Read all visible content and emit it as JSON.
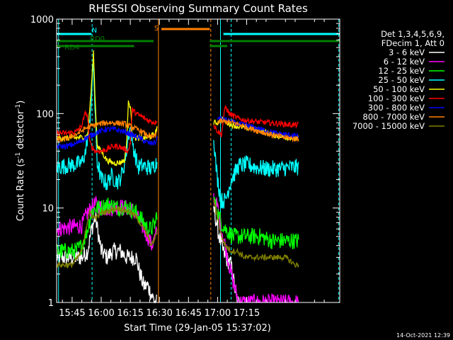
{
  "chart_data": {
    "type": "line",
    "title": "RHESSI Observing Summary Count Rates",
    "xlabel": "Start Time (29-Jan-05 15:37:02)",
    "ylabel": "Count Rate (s⁻¹ detector⁻¹)",
    "ylabel_parts": [
      "Count Rate (s",
      "-1",
      " detector",
      "-1",
      ")"
    ],
    "yscale": "log",
    "ylim": [
      1,
      1000
    ],
    "xlim_minutes": [
      37,
      183
    ],
    "x_ticks": [
      {
        "m": 45,
        "label": "15:45"
      },
      {
        "m": 60,
        "label": "16:00"
      },
      {
        "m": 75,
        "label": "16:15"
      },
      {
        "m": 90,
        "label": "16:30"
      },
      {
        "m": 105,
        "label": "16:45"
      },
      {
        "m": 120,
        "label": "17:00"
      },
      {
        "m": 135,
        "label": "17:15"
      }
    ],
    "y_ticks": [
      {
        "v": 1,
        "label": "1"
      },
      {
        "v": 10,
        "label": "10"
      },
      {
        "v": 100,
        "label": "100"
      },
      {
        "v": 1000,
        "label": "1000"
      }
    ],
    "legend_header": [
      "Det 1,3,4,5,6,9,",
      "FDecim 1, Att 0"
    ],
    "legend_position": "right",
    "timestamp": "14-Oct-2021 12:39",
    "series": [
      {
        "name": "3 - 6 keV",
        "color": "#ffffff",
        "gap": 3,
        "x": [
          37,
          50,
          53,
          55,
          57,
          60,
          63,
          66,
          70,
          73,
          76,
          78,
          80,
          82,
          84,
          86,
          88,
          89,
          117,
          118,
          120,
          122,
          124,
          127,
          130,
          132
        ],
        "y": [
          3,
          3,
          3.5,
          6,
          8,
          3.5,
          3,
          3.5,
          3.5,
          3,
          3,
          3,
          2,
          1.5,
          1.5,
          1.2,
          1,
          1,
          20,
          10,
          6,
          4,
          3,
          2.5,
          1,
          1
        ]
      },
      {
        "name": "6 - 12 keV",
        "color": "#ff00ff",
        "gap": 3,
        "x": [
          37,
          50,
          53,
          55,
          57,
          60,
          63,
          66,
          69,
          72,
          74,
          76,
          78,
          80,
          82,
          84,
          86,
          88,
          89,
          117,
          118,
          120,
          122,
          124,
          127,
          129,
          131,
          133,
          135,
          138,
          142,
          148,
          152,
          158,
          162
        ],
        "y": [
          6,
          6.5,
          9,
          10,
          11,
          10,
          10,
          10,
          10.5,
          10,
          10,
          9.5,
          8.5,
          7,
          6,
          5,
          4,
          5,
          6,
          20,
          13,
          10,
          6,
          4,
          2,
          1.4,
          1,
          1,
          1,
          1,
          1,
          1,
          1,
          1,
          1
        ]
      },
      {
        "name": "12 - 25 keV",
        "color": "#00ff00",
        "gap": 3,
        "x": [
          37,
          47,
          50,
          53,
          55,
          57,
          60,
          63,
          66,
          69,
          72,
          74,
          76,
          78,
          80,
          82,
          84,
          86,
          88,
          89,
          117,
          118,
          120,
          122,
          124,
          128,
          133,
          138,
          142,
          148,
          152,
          158,
          162
        ],
        "y": [
          3.5,
          3.5,
          4,
          6,
          9,
          10,
          10,
          11,
          10.5,
          10,
          10.5,
          10,
          9.5,
          9,
          8,
          7,
          6,
          6,
          7,
          10,
          18,
          12,
          9,
          7,
          6,
          5,
          5,
          5,
          5,
          4.5,
          4.5,
          4.5,
          4.5
        ]
      },
      {
        "name": "25 - 50 keV",
        "color": "#00ffff",
        "gap": 3,
        "x": [
          37,
          42,
          47,
          50,
          52,
          53,
          54,
          55,
          56,
          57,
          58,
          59,
          60,
          61,
          63,
          65,
          67,
          69,
          71,
          72,
          73,
          74,
          75,
          77,
          79,
          81,
          84,
          86,
          88,
          89,
          117,
          118,
          119,
          120,
          121,
          122,
          124,
          127,
          131,
          135,
          140,
          145,
          152,
          158,
          162
        ],
        "y": [
          27,
          28,
          29,
          30,
          40,
          60,
          80,
          150,
          350,
          80,
          30,
          25,
          20,
          20,
          18,
          22,
          20,
          19,
          24,
          30,
          40,
          60,
          70,
          40,
          27,
          28,
          27,
          26,
          30,
          30,
          90,
          60,
          30,
          20,
          15,
          12,
          12,
          20,
          28,
          29,
          27,
          26,
          26,
          27,
          27
        ]
      },
      {
        "name": "50 - 100 keV",
        "color": "#ffff00",
        "gap": 3,
        "x": [
          37,
          45,
          50,
          53,
          55,
          56,
          57,
          58,
          60,
          63,
          66,
          69,
          72,
          73,
          74,
          75,
          76,
          78,
          80,
          82,
          84,
          86,
          88,
          89,
          117,
          118,
          120,
          122,
          125,
          128,
          132,
          138,
          142,
          146,
          150,
          156,
          162
        ],
        "y": [
          55,
          55,
          56,
          58,
          200,
          450,
          120,
          45,
          40,
          32,
          30,
          30,
          32,
          45,
          130,
          120,
          60,
          55,
          55,
          55,
          56,
          58,
          62,
          75,
          90,
          80,
          80,
          90,
          80,
          75,
          72,
          70,
          66,
          62,
          58,
          56,
          54
        ]
      },
      {
        "name": "100 - 300 keV",
        "color": "#ff0000",
        "gap": 3,
        "x": [
          37,
          42,
          47,
          50,
          52,
          53,
          54,
          55,
          57,
          60,
          63,
          66,
          69,
          72,
          74,
          75,
          76,
          78,
          80,
          82,
          84,
          86,
          88,
          89,
          117,
          118,
          120,
          122,
          124,
          126,
          130,
          134,
          140,
          146,
          152,
          158,
          162
        ],
        "y": [
          62,
          62,
          64,
          75,
          105,
          90,
          50,
          45,
          40,
          40,
          42,
          45,
          45,
          42,
          40,
          50,
          110,
          100,
          95,
          90,
          85,
          82,
          80,
          90,
          100,
          75,
          65,
          60,
          120,
          100,
          90,
          85,
          82,
          80,
          78,
          76,
          76
        ]
      },
      {
        "name": "300 - 800 keV",
        "color": "#0000ff",
        "gap": 3,
        "x": [
          37,
          42,
          47,
          52,
          57,
          62,
          67,
          72,
          77,
          80,
          83,
          86,
          88,
          89,
          117,
          120,
          125,
          130,
          135,
          140,
          145,
          150,
          155,
          160,
          162
        ],
        "y": [
          45,
          45,
          48,
          55,
          62,
          68,
          68,
          64,
          58,
          55,
          50,
          48,
          50,
          55,
          95,
          90,
          85,
          78,
          75,
          70,
          66,
          62,
          60,
          58,
          58
        ]
      },
      {
        "name": "800 - 7000 keV",
        "color": "#ff8000",
        "gap": 3,
        "x": [
          37,
          42,
          47,
          52,
          57,
          62,
          67,
          72,
          77,
          80,
          83,
          86,
          88,
          89,
          117,
          120,
          125,
          130,
          135,
          140,
          145,
          150,
          155,
          160,
          162
        ],
        "y": [
          52,
          54,
          60,
          70,
          76,
          80,
          80,
          78,
          70,
          66,
          60,
          56,
          58,
          65,
          80,
          82,
          82,
          78,
          72,
          66,
          62,
          58,
          56,
          54,
          54
        ]
      },
      {
        "name": "7000 - 15000 keV",
        "color": "#808000",
        "gap": 3,
        "x": [
          37,
          45,
          48,
          50,
          52,
          54,
          56,
          58,
          60,
          62,
          65,
          68,
          72,
          75,
          78,
          80,
          82,
          84,
          86,
          88,
          89,
          117,
          118,
          120,
          122,
          124,
          127,
          130,
          134,
          138,
          142,
          146,
          150,
          155,
          160,
          162
        ],
        "y": [
          2.5,
          2.5,
          3,
          3.5,
          6,
          9,
          8,
          8,
          9,
          9,
          9.5,
          10,
          9.5,
          9,
          8,
          7,
          6,
          5,
          4,
          5,
          6,
          16,
          12,
          8,
          5,
          4,
          3.5,
          3.5,
          3,
          3,
          3,
          3,
          3,
          3,
          2.5,
          2.5
        ]
      }
    ],
    "annotations": {
      "vlines": [
        {
          "m": 38,
          "color": "#00ffff",
          "dash": false
        },
        {
          "m": 55.3,
          "color": "#00ffff",
          "dash": true
        },
        {
          "m": 89.5,
          "color": "#ff8000",
          "dash": false
        },
        {
          "m": 116.5,
          "color": "#ff8000",
          "dash": true
        },
        {
          "m": 121.5,
          "color": "#00ffff",
          "dash": false
        },
        {
          "m": 127,
          "color": "#00ffff",
          "dash": true
        },
        {
          "m": 182.5,
          "color": "#00ffff",
          "dash": true
        }
      ],
      "bars": [
        {
          "label": "N",
          "color": "#00ffff",
          "row": 0,
          "segments": [
            [
              37,
              55
            ],
            [
              123,
              183
            ]
          ],
          "label_m": 56.5
        },
        {
          "label": "S",
          "color": "#ff8000",
          "row": -1,
          "segments": [
            [
              91,
              116
            ]
          ],
          "label_m": 88.5
        },
        {
          "label": "RD0",
          "color": "#008000",
          "row": 1,
          "segments": [
            [
              37,
              87
            ],
            [
              116,
              183
            ]
          ],
          "label_m": 58
        },
        {
          "label": "RD4",
          "color": "#008000",
          "row": 2,
          "segments": [
            [
              37,
              77
            ],
            [
              116,
              125
            ]
          ],
          "label_m": 45
        }
      ]
    }
  }
}
